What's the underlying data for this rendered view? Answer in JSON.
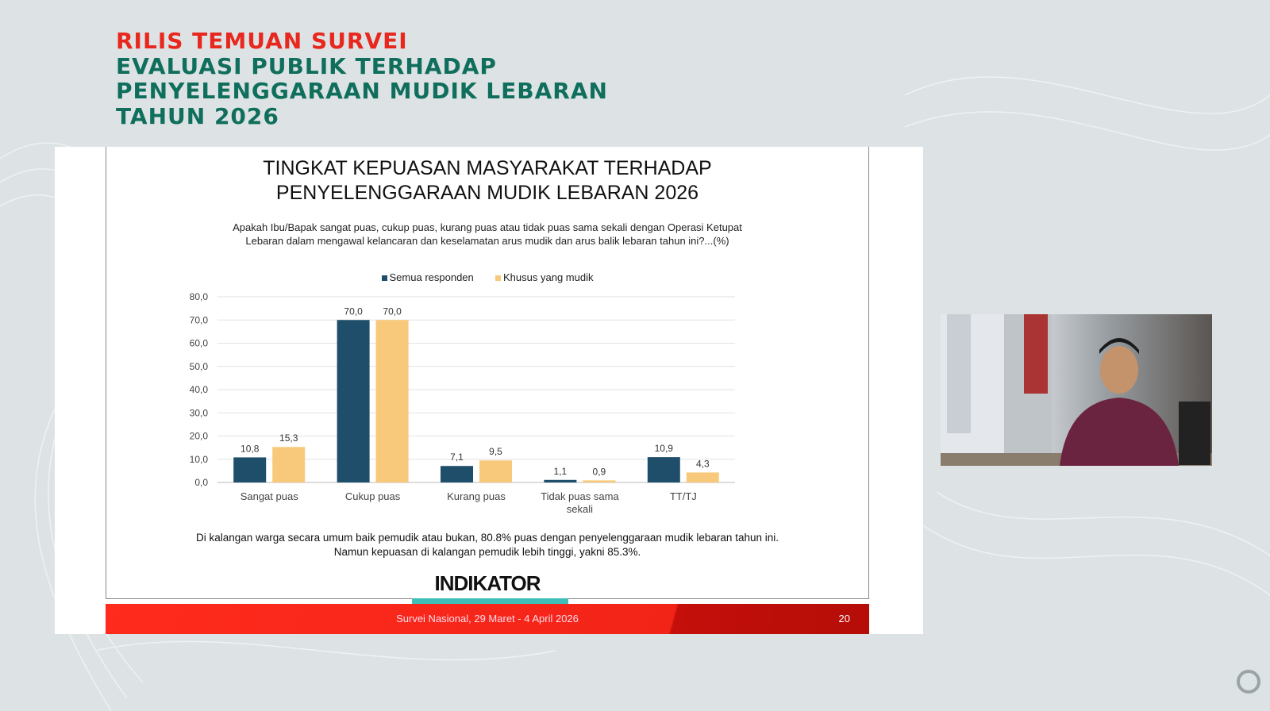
{
  "header": {
    "line1": "RILIS TEMUAN SURVEI",
    "line2": "EVALUASI PUBLIK TERHADAP",
    "line3": "PENYELENGGARAAN MUDIK LEBARAN",
    "line4": "TAHUN 2026"
  },
  "slide": {
    "title_line1": "TINGKAT KEPUASAN MASYARAKAT TERHADAP",
    "title_line2": "PENYELENGGARAAN MUDIK LEBARAN 2026",
    "question_line1": "Apakah Ibu/Bapak sangat puas, cukup puas, kurang puas atau tidak puas sama sekali dengan Operasi Ketupat",
    "question_line2": "Lebaran dalam mengawal kelancaran dan keselamatan arus mudik dan arus balik lebaran tahun ini?...(%)",
    "note_line1": "Di kalangan warga secara umum baik pemudik atau bukan, 80.8% puas dengan penyelenggaraan mudik lebaran tahun ini.",
    "note_line2": "Namun kepuasan di kalangan pemudik lebih tinggi, yakni 85.3%.",
    "logo": "INDIKATOR",
    "footer": "Survei Nasional, 29 Maret - 4 April 2026",
    "page": "20"
  },
  "chart_data": {
    "type": "bar",
    "title": "TINGKAT KEPUASAN MASYARAKAT TERHADAP PENYELENGGARAAN MUDIK LEBARAN 2026",
    "categories": [
      "Sangat puas",
      "Cukup puas",
      "Kurang puas",
      "Tidak puas sama sekali",
      "TT/TJ"
    ],
    "series": [
      {
        "name": "Semua responden",
        "values": [
          10.8,
          70.0,
          7.1,
          1.1,
          10.9
        ],
        "color": "#1f4e6b"
      },
      {
        "name": "Khusus yang mudik",
        "values": [
          15.3,
          70.0,
          9.5,
          0.9,
          4.3
        ],
        "color": "#f8c97a"
      }
    ],
    "yticks": [
      "0,0",
      "10,0",
      "20,0",
      "30,0",
      "40,0",
      "50,0",
      "60,0",
      "70,0",
      "80,0"
    ],
    "ylim": [
      0,
      80
    ],
    "grid": true,
    "legend": "top"
  }
}
